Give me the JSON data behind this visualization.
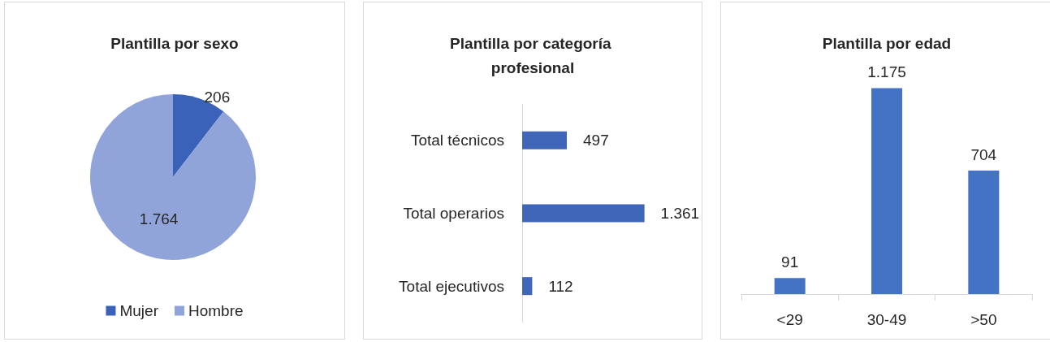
{
  "chart_data": [
    {
      "type": "pie",
      "title": "Plantilla por sexo",
      "categories": [
        "Mujer",
        "Hombre"
      ],
      "values": [
        206,
        1764
      ],
      "value_labels": [
        "206",
        "1.764"
      ],
      "colors": [
        "#3a62b8",
        "#90a4da"
      ],
      "legend": "bottom"
    },
    {
      "type": "bar",
      "orientation": "horizontal",
      "title": "Plantilla por categoría profesional",
      "categories": [
        "Total técnicos",
        "Total operarios",
        "Total ejecutivos"
      ],
      "values": [
        497,
        1361,
        112
      ],
      "value_labels": [
        "497",
        "1.361",
        "112"
      ],
      "color": "#3f66b8"
    },
    {
      "type": "bar",
      "title": "Plantilla por edad",
      "categories": [
        "<29",
        "30-49",
        ">50"
      ],
      "values": [
        91,
        1175,
        704
      ],
      "value_labels": [
        "91",
        "1.175",
        "704"
      ],
      "color": "#4472c4"
    }
  ]
}
